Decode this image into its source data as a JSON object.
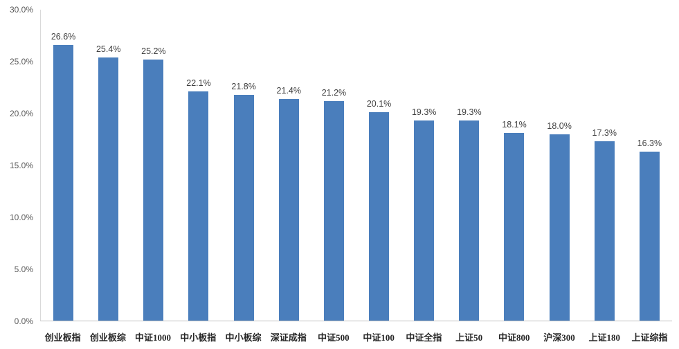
{
  "chart_data": {
    "type": "bar",
    "title": "",
    "xlabel": "",
    "ylabel": "",
    "ylim": [
      0,
      30
    ],
    "grid": false,
    "legend_position": "none",
    "bar_color": "#4a7ebc",
    "categories": [
      "创业板指",
      "创业板综",
      "中证1000",
      "中小板指",
      "中小板综",
      "深证成指",
      "中证500",
      "中证100",
      "中证全指",
      "上证50",
      "中证800",
      "沪深300",
      "上证180",
      "上证综指"
    ],
    "values": [
      26.6,
      25.4,
      25.2,
      22.1,
      21.8,
      21.4,
      21.2,
      20.1,
      19.3,
      19.3,
      18.1,
      18.0,
      17.3,
      16.3
    ],
    "value_labels": [
      "26.6%",
      "25.4%",
      "25.2%",
      "22.1%",
      "21.8%",
      "21.4%",
      "21.2%",
      "20.1%",
      "19.3%",
      "19.3%",
      "18.1%",
      "18.0%",
      "17.3%",
      "16.3%"
    ],
    "y_ticks": [
      {
        "value": 0,
        "label": "0.0%"
      },
      {
        "value": 5,
        "label": "5.0%"
      },
      {
        "value": 10,
        "label": "10.0%"
      },
      {
        "value": 15,
        "label": "15.0%"
      },
      {
        "value": 20,
        "label": "20.0%"
      },
      {
        "value": 25,
        "label": "25.0%"
      },
      {
        "value": 30,
        "label": "30.0%"
      }
    ]
  }
}
